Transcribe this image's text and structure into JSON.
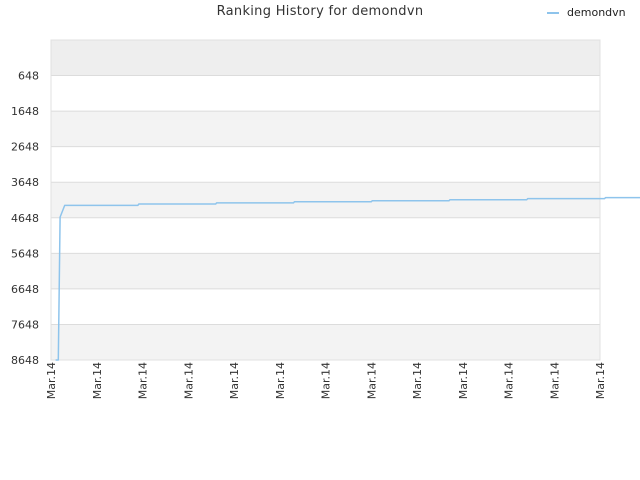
{
  "chart_data": {
    "type": "line",
    "title": "Ranking History for demondvn",
    "xlabel": "",
    "ylabel": "",
    "y_inverted": true,
    "ylim": [
      8648,
      -352
    ],
    "y_ticks": [
      648,
      1648,
      2648,
      3648,
      4648,
      5648,
      6648,
      7648,
      8648
    ],
    "x_tick_labels": [
      "Mar.14",
      "Mar.14",
      "Mar.14",
      "Mar.14",
      "Mar.14",
      "Mar.14",
      "Mar.14",
      "Mar.14",
      "Mar.14",
      "Mar.14",
      "Mar.14",
      "Mar.14",
      "Mar.14"
    ],
    "grid": true,
    "legend_position": "top-right",
    "series": [
      {
        "name": "demondvn",
        "color": "#8ec4ec",
        "points": [
          [
            0.1,
            8648
          ],
          [
            0.16,
            8648
          ],
          [
            0.2,
            4630
          ],
          [
            0.3,
            4300
          ],
          [
            1.0,
            4300
          ],
          [
            1.9,
            4300
          ],
          [
            1.92,
            4260
          ],
          [
            3.6,
            4260
          ],
          [
            3.62,
            4230
          ],
          [
            5.3,
            4230
          ],
          [
            5.32,
            4200
          ],
          [
            7.0,
            4200
          ],
          [
            7.02,
            4170
          ],
          [
            8.7,
            4170
          ],
          [
            8.72,
            4140
          ],
          [
            10.4,
            4140
          ],
          [
            10.42,
            4110
          ],
          [
            12.1,
            4110
          ],
          [
            12.12,
            4080
          ],
          [
            12.9,
            4080
          ],
          [
            13.0,
            3650
          ]
        ]
      }
    ]
  }
}
